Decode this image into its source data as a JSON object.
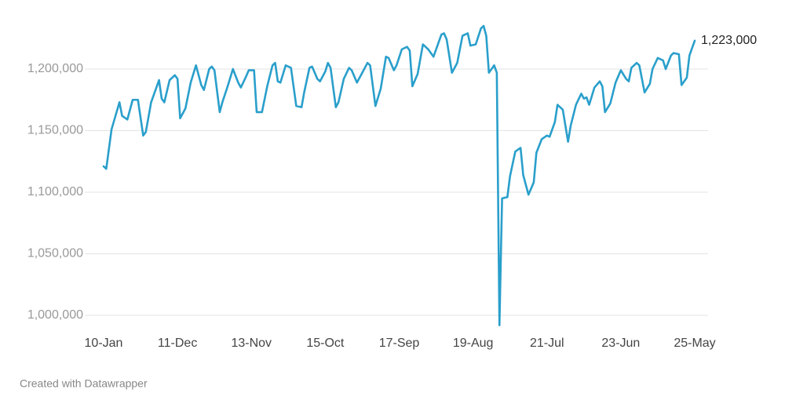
{
  "chart_data": {
    "type": "line",
    "footer": "Created with Datawrapper",
    "color": "#2a9fcb",
    "grid": true,
    "x": [
      0,
      1,
      3,
      6,
      7,
      9,
      11,
      13,
      15,
      16,
      18,
      21,
      22,
      23,
      25,
      27,
      28,
      29,
      31,
      33,
      35,
      37,
      38,
      40,
      41,
      42,
      44,
      45,
      47,
      49,
      51,
      52,
      54,
      55,
      57,
      58,
      60,
      62,
      64,
      65,
      66,
      67,
      69,
      71,
      73,
      75,
      76,
      78,
      79,
      81,
      82,
      84,
      85,
      86,
      88,
      89,
      91,
      93,
      94,
      96,
      98,
      100,
      101,
      103,
      105,
      107,
      108,
      110,
      111,
      113,
      115,
      116,
      117,
      119,
      121,
      123,
      125,
      128,
      129,
      130,
      132,
      134,
      136,
      138,
      139,
      141,
      143,
      144,
      145,
      146,
      148,
      149,
      150,
      151,
      153,
      154,
      156,
      158,
      159,
      161,
      163,
      164,
      166,
      168,
      169,
      171,
      172,
      174,
      176,
      177,
      179,
      181,
      182,
      183,
      184,
      186,
      188,
      189,
      190,
      192,
      194,
      196,
      198,
      199,
      200,
      202,
      203,
      205,
      207,
      208,
      210,
      212,
      213,
      215,
      216,
      218,
      219,
      221,
      222,
      224
    ],
    "values": [
      1121000,
      1119000,
      1151000,
      1173000,
      1162000,
      1159000,
      1175000,
      1175000,
      1146000,
      1149000,
      1173000,
      1191000,
      1176000,
      1173000,
      1191000,
      1195000,
      1192000,
      1160000,
      1168000,
      1189000,
      1203000,
      1187000,
      1183000,
      1200000,
      1202000,
      1199000,
      1165000,
      1173000,
      1186000,
      1200000,
      1189000,
      1185000,
      1194000,
      1199000,
      1199000,
      1165000,
      1165000,
      1186000,
      1203000,
      1205000,
      1190000,
      1189000,
      1203000,
      1201000,
      1170000,
      1169000,
      1181000,
      1201000,
      1202000,
      1192000,
      1190000,
      1198000,
      1205000,
      1201000,
      1169000,
      1173000,
      1192000,
      1201000,
      1199000,
      1189000,
      1197000,
      1205000,
      1203000,
      1170000,
      1184000,
      1210000,
      1209000,
      1199000,
      1203000,
      1216000,
      1218000,
      1215000,
      1186000,
      1196000,
      1220000,
      1216000,
      1210000,
      1228000,
      1229000,
      1224000,
      1197000,
      1205000,
      1227000,
      1229000,
      1219000,
      1220000,
      1233000,
      1235000,
      1227000,
      1197000,
      1203000,
      1197000,
      992000,
      1095000,
      1096000,
      1113000,
      1133000,
      1136000,
      1114000,
      1098000,
      1108000,
      1132000,
      1143000,
      1146000,
      1145000,
      1157000,
      1171000,
      1167000,
      1141000,
      1154000,
      1171000,
      1180000,
      1176000,
      1177000,
      1171000,
      1185000,
      1190000,
      1186000,
      1165000,
      1172000,
      1189000,
      1199000,
      1192000,
      1190000,
      1201000,
      1205000,
      1203000,
      1181000,
      1188000,
      1200000,
      1209000,
      1207000,
      1200000,
      1211000,
      1213000,
      1212000,
      1187000,
      1193000,
      1211000,
      1223000
    ],
    "value_labels": [
      null,
      null,
      null,
      null,
      null,
      null,
      null,
      null,
      null,
      null,
      null,
      null,
      null,
      null,
      null,
      null,
      null,
      null,
      null,
      null,
      null,
      null,
      null,
      null,
      null,
      null,
      null,
      null,
      null,
      null,
      null,
      null,
      null,
      null,
      null,
      null,
      null,
      null,
      null,
      null,
      null,
      null,
      null,
      null,
      null,
      null,
      null,
      null,
      null,
      null,
      null,
      null,
      null,
      null,
      null,
      null,
      null,
      null,
      null,
      null,
      null,
      null,
      null,
      null,
      null,
      null,
      null,
      null,
      null,
      null,
      null,
      null,
      null,
      null,
      null,
      null,
      null,
      null,
      null,
      null,
      null,
      null,
      null,
      null,
      null,
      null,
      null,
      null,
      null,
      null,
      null,
      null,
      null,
      null,
      null,
      null,
      null,
      null,
      null,
      null,
      null,
      null,
      null,
      null,
      null,
      null,
      null,
      null,
      null,
      null,
      null,
      null,
      null,
      null,
      null,
      null,
      null,
      null,
      null,
      null,
      null,
      null,
      null,
      null,
      null,
      null,
      null,
      null,
      null,
      null,
      null,
      null,
      null,
      null,
      null,
      null,
      null,
      null,
      null,
      "1,223,000"
    ],
    "xlim": [
      0,
      224
    ],
    "xticks": [
      {
        "value": 0,
        "label": "10-Jan"
      },
      {
        "value": 28,
        "label": "11-Dec"
      },
      {
        "value": 56,
        "label": "13-Nov"
      },
      {
        "value": 84,
        "label": "15-Oct"
      },
      {
        "value": 112,
        "label": "17-Sep"
      },
      {
        "value": 140,
        "label": "19-Aug"
      },
      {
        "value": 168,
        "label": "21-Jul"
      },
      {
        "value": 196,
        "label": "23-Jun"
      },
      {
        "value": 224,
        "label": "25-May"
      }
    ],
    "ylim": [
      990000,
      1240000
    ],
    "yticks": [
      {
        "value": 1000000,
        "label": "1,000,000"
      },
      {
        "value": 1050000,
        "label": "1,050,000"
      },
      {
        "value": 1100000,
        "label": "1,100,000"
      },
      {
        "value": 1150000,
        "label": "1,150,000"
      },
      {
        "value": 1200000,
        "label": "1,200,000"
      }
    ]
  }
}
